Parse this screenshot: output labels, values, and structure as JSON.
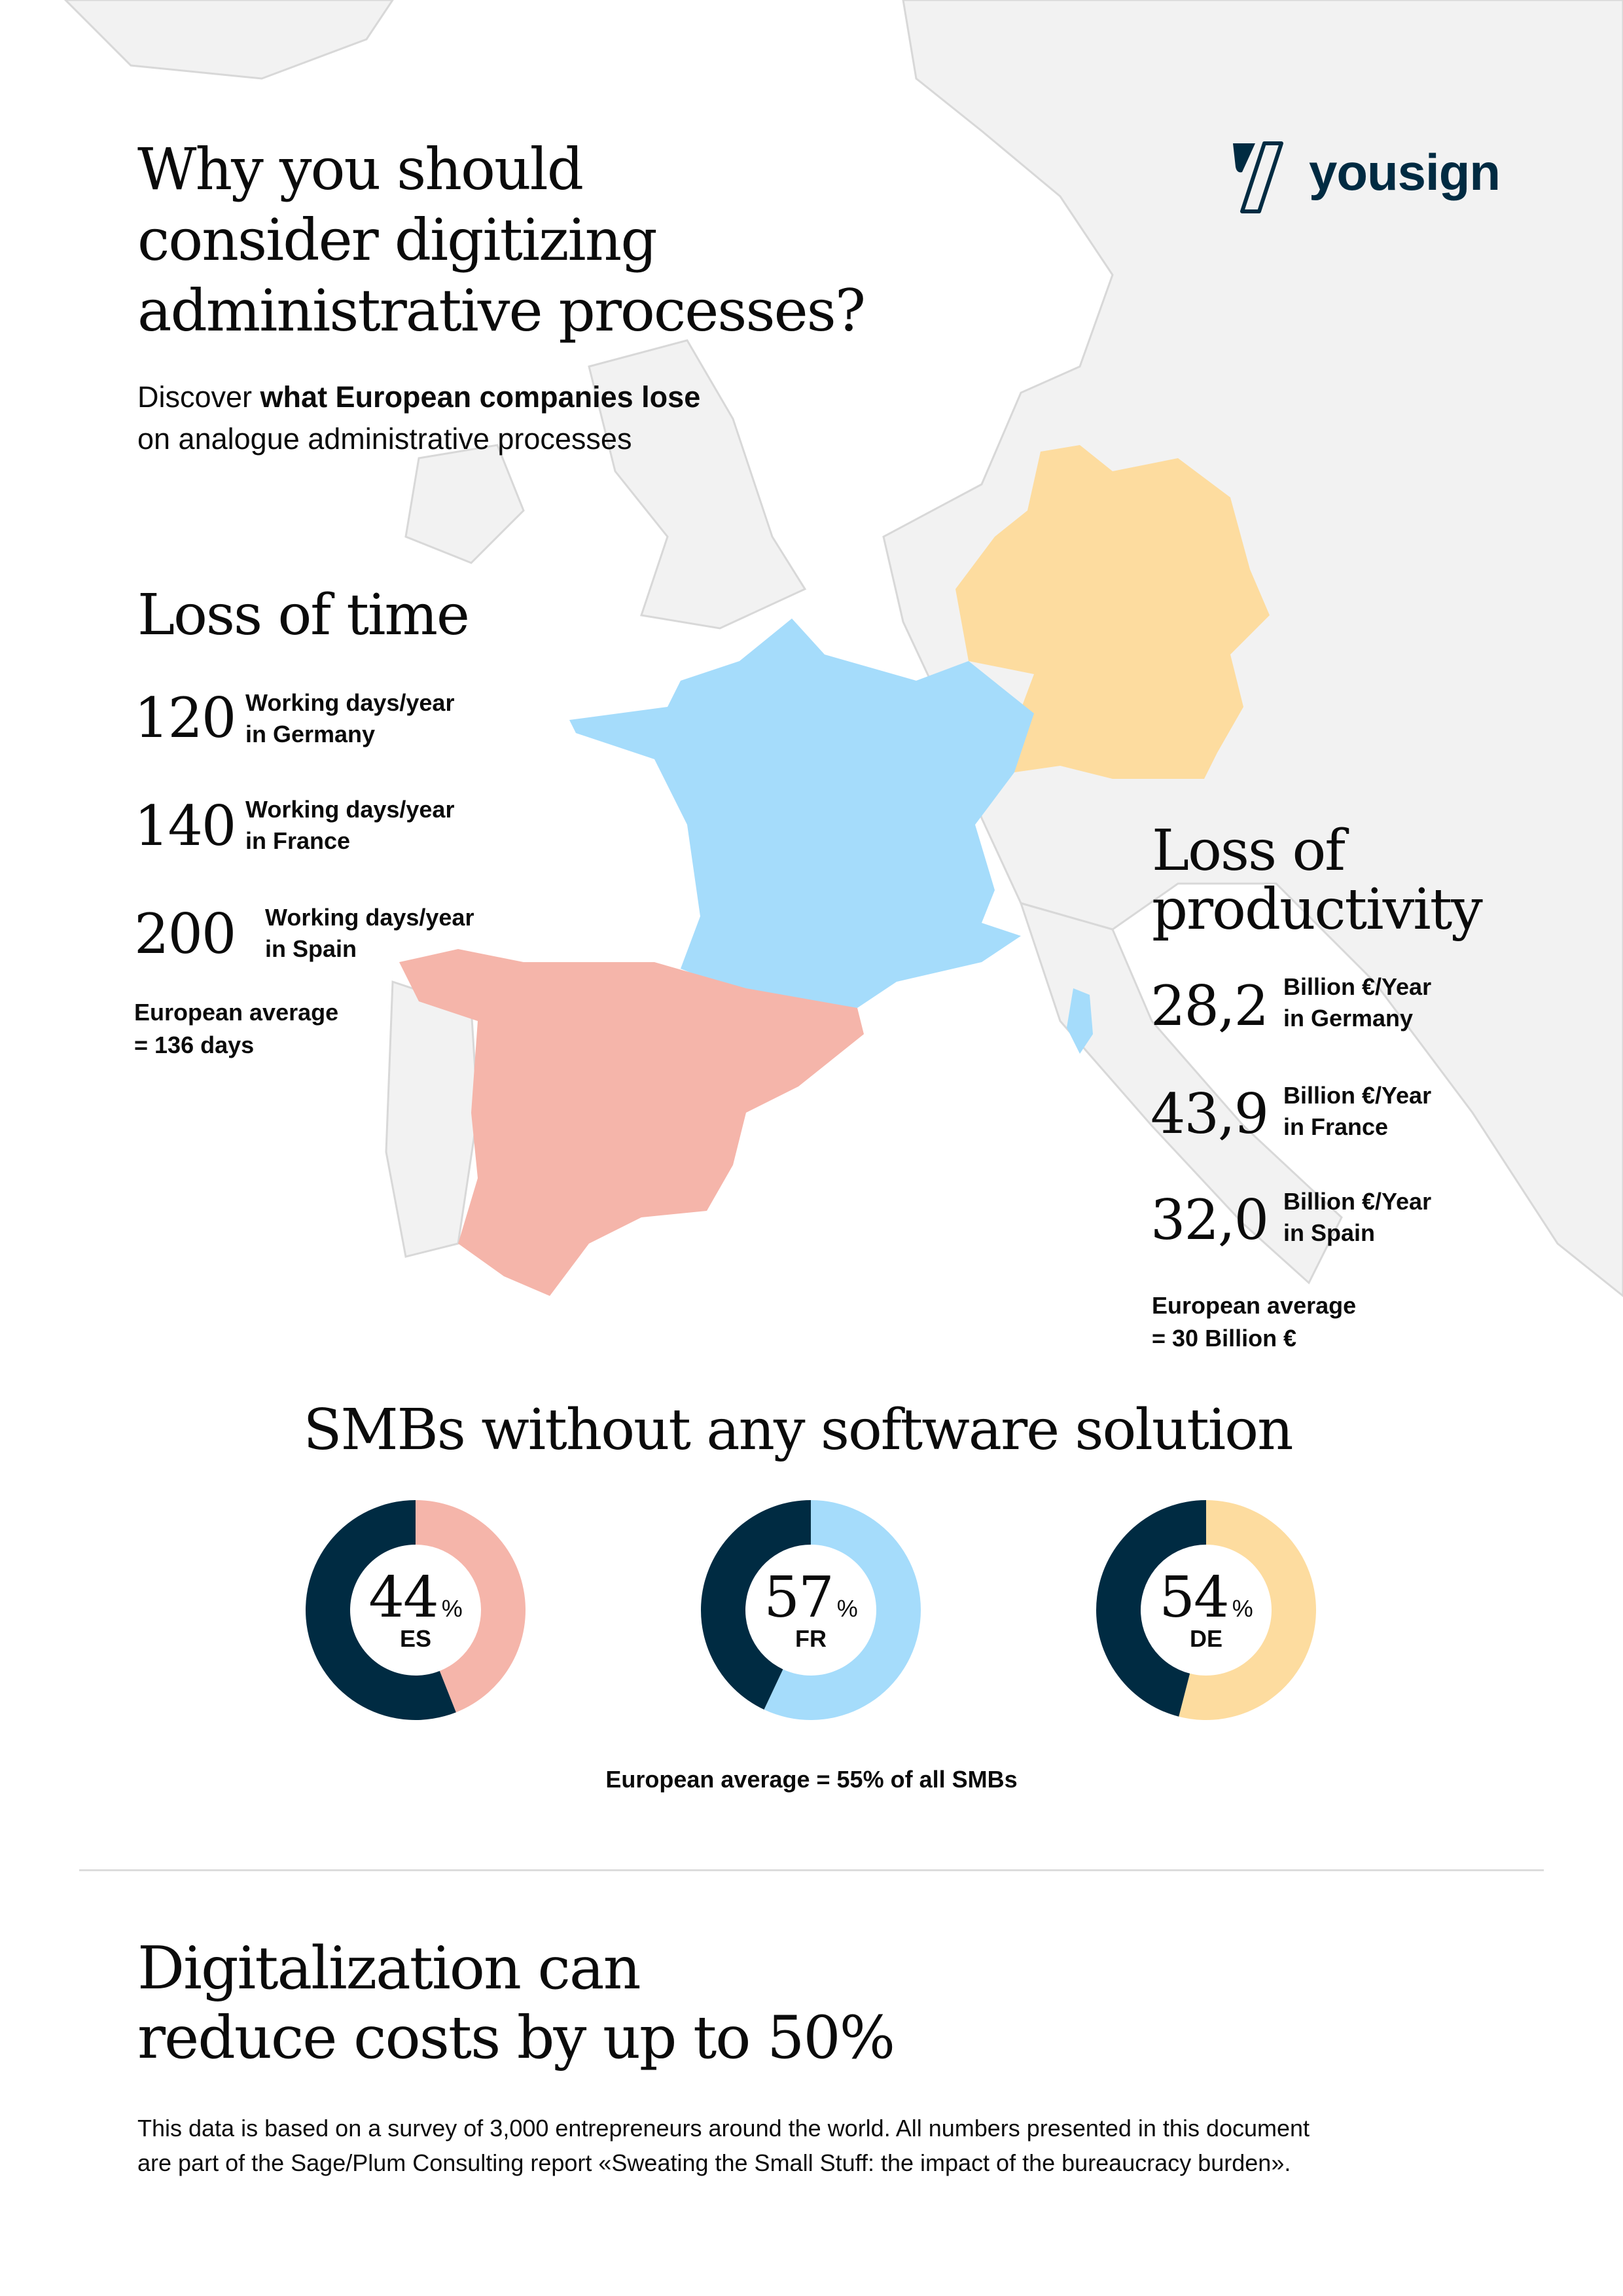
{
  "brand": {
    "name": "yousign",
    "color": "#002b42"
  },
  "header": {
    "title_lines": [
      "Why you should",
      "consider digitizing",
      "administrative processes?"
    ],
    "subtitle_prefix": "Discover ",
    "subtitle_bold": "what European companies lose",
    "subtitle_line2": "on analogue administrative processes"
  },
  "loss_of_time": {
    "title": "Loss of time",
    "items": [
      {
        "value": "120",
        "unit": "Working days/year",
        "country": "in Germany"
      },
      {
        "value": "140",
        "unit": "Working days/year",
        "country": "in France"
      },
      {
        "value": "200",
        "unit": "Working days/year",
        "country": "in Spain"
      }
    ],
    "average_lines": [
      "European average",
      "= 136 days"
    ]
  },
  "loss_of_productivity": {
    "title_lines": [
      "Loss of",
      "productivity"
    ],
    "items": [
      {
        "value": "28,2",
        "unit": "Billion €/Year",
        "country": "in Germany"
      },
      {
        "value": "43,9",
        "unit": "Billion €/Year",
        "country": "in France"
      },
      {
        "value": "32,0",
        "unit": "Billion €/Year",
        "country": "in Spain"
      }
    ],
    "average_lines": [
      "European average",
      "= 30 Billion €"
    ]
  },
  "map_colors": {
    "germany": "#fddc9f",
    "france": "#a5dcfb",
    "spain": "#f5b5aa",
    "land": "#f2f2f2"
  },
  "smb": {
    "title": "SMBs without any software solution",
    "donuts": [
      {
        "value": "44",
        "percent": 44,
        "code": "ES",
        "color": "#f5b5aa"
      },
      {
        "value": "57",
        "percent": 57,
        "code": "FR",
        "color": "#a5dcfb"
      },
      {
        "value": "54",
        "percent": 54,
        "code": "DE",
        "color": "#fddc9f"
      }
    ],
    "percent_sign": "%",
    "remainder_color": "#002b42",
    "average": "European average = 55% of all SMBs"
  },
  "conclusion": {
    "title_lines": [
      "Digitalization can",
      "reduce costs by up to 50%"
    ]
  },
  "footnote_lines": [
    "This data is based on a survey of 3,000 entrepreneurs around the world. All numbers presented in this document",
    "are part of the Sage/Plum Consulting report «Sweating the Small Stuff: the impact of the bureaucracy burden»."
  ]
}
